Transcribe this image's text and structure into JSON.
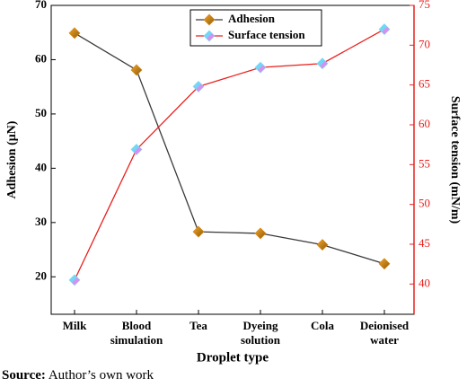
{
  "chart_data": {
    "type": "line",
    "xlabel": "Droplet type",
    "ylabel": "Adhesion (μN)",
    "y2label": "Surface tension (mN/m)",
    "categories": [
      "Milk",
      "Blood simulation",
      "Tea",
      "Dyeing solution",
      "Cola",
      "Deionised water"
    ],
    "series": [
      {
        "name": "Adhesion",
        "color": "#3a3a3a",
        "marker_color": "#d9820a",
        "values": [
          64.9,
          58.1,
          28.3,
          28.0,
          25.9,
          22.4
        ]
      },
      {
        "name": "Surface tension",
        "color": "#e8201c",
        "marker_color": "#7fd6f2",
        "axis": "y2",
        "values": [
          40.5,
          56.9,
          64.8,
          67.2,
          67.7,
          72.0
        ]
      }
    ],
    "ylim": [
      13.1,
      70
    ],
    "yticks": [
      20,
      30,
      40,
      50,
      60,
      70
    ],
    "y2lim": [
      36.2,
      75
    ],
    "y2ticks": [
      40,
      45,
      50,
      55,
      60,
      65,
      70,
      75
    ],
    "y2color": "#e8201c",
    "legend": "top"
  },
  "source_label": "Source:",
  "source_text": "Author’s own work"
}
